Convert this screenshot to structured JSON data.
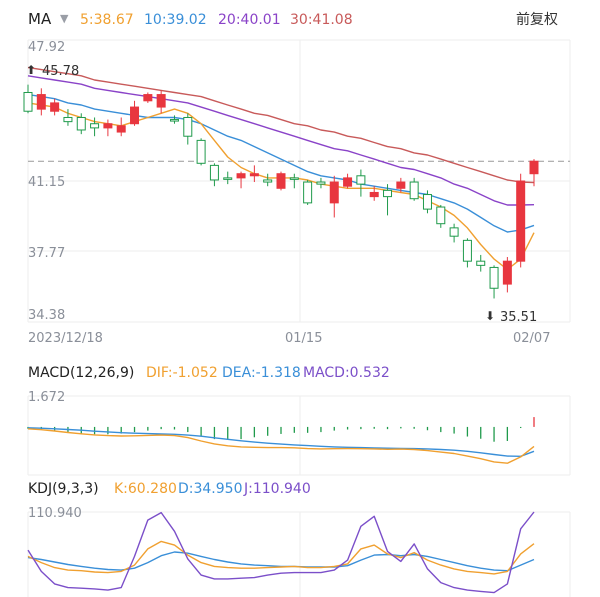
{
  "colors": {
    "up": "#e8363f",
    "down": "#1f9a4b",
    "ma5": "#f0a030",
    "ma10": "#3a8fd8",
    "ma20": "#8a43c8",
    "ma30": "#c85a5a",
    "dif": "#f0a030",
    "dea": "#3a8fd8",
    "macd_bar": "#8a43c8",
    "k": "#f0a030",
    "d": "#3a8fd8",
    "j": "#7b4fc9",
    "grid": "#eeeeee",
    "text": "#8a8f99",
    "last_price_line": "#999999"
  },
  "header": {
    "indicator": "MA",
    "dropdown_icon": "triangle-down-icon",
    "ma5": "5:38.67",
    "ma10": "10:39.02",
    "ma20": "20:40.01",
    "ma30": "30:41.08",
    "adjust": "前复权"
  },
  "macd_header": {
    "name": "MACD(12,26,9)",
    "dif": "DIF:-1.052",
    "dea": "DEA:-1.318",
    "macd": "MACD:0.532"
  },
  "kdj_header": {
    "name": "KDJ(9,3,3)",
    "k": "K:60.280",
    "d": "D:34.950",
    "j": "J:110.940"
  },
  "chart_data": [
    {
      "type": "candlestick",
      "price_ticks": [
        "47.92",
        "41.15",
        "37.77",
        "34.38"
      ],
      "x_ticks": [
        "2023/12/18",
        "01/15",
        "02/07"
      ],
      "ylim": [
        34.38,
        47.92
      ],
      "max_label": "45.78",
      "min_label": "35.51",
      "last_close": 42.1,
      "candles": [
        {
          "o": 45.4,
          "c": 44.5,
          "h": 45.78,
          "l": 44.4
        },
        {
          "o": 44.6,
          "c": 45.3,
          "h": 45.6,
          "l": 44.3
        },
        {
          "o": 44.5,
          "c": 44.9,
          "h": 45.1,
          "l": 44.3
        },
        {
          "o": 44.2,
          "c": 44.0,
          "h": 44.6,
          "l": 43.8
        },
        {
          "o": 44.2,
          "c": 43.6,
          "h": 44.4,
          "l": 43.4
        },
        {
          "o": 43.9,
          "c": 43.7,
          "h": 44.2,
          "l": 43.3
        },
        {
          "o": 43.7,
          "c": 43.9,
          "h": 44.1,
          "l": 43.3
        },
        {
          "o": 43.5,
          "c": 43.8,
          "h": 44.2,
          "l": 43.3
        },
        {
          "o": 43.9,
          "c": 44.7,
          "h": 45.0,
          "l": 43.8
        },
        {
          "o": 45.0,
          "c": 45.3,
          "h": 45.4,
          "l": 44.9
        },
        {
          "o": 44.7,
          "c": 45.3,
          "h": 45.5,
          "l": 44.4
        },
        {
          "o": 44.1,
          "c": 44.1,
          "h": 44.3,
          "l": 43.9
        },
        {
          "o": 44.2,
          "c": 43.3,
          "h": 44.4,
          "l": 42.9
        },
        {
          "o": 43.1,
          "c": 42.0,
          "h": 43.2,
          "l": 41.9
        },
        {
          "o": 41.9,
          "c": 41.2,
          "h": 42.0,
          "l": 40.9
        },
        {
          "o": 41.3,
          "c": 41.3,
          "h": 41.6,
          "l": 41.0
        },
        {
          "o": 41.3,
          "c": 41.5,
          "h": 41.6,
          "l": 40.8
        },
        {
          "o": 41.4,
          "c": 41.5,
          "h": 41.9,
          "l": 41.1
        },
        {
          "o": 41.2,
          "c": 41.1,
          "h": 41.5,
          "l": 40.9
        },
        {
          "o": 40.8,
          "c": 41.5,
          "h": 41.6,
          "l": 40.7
        },
        {
          "o": 41.3,
          "c": 41.3,
          "h": 41.5,
          "l": 40.8
        },
        {
          "o": 41.1,
          "c": 40.1,
          "h": 41.2,
          "l": 40.0
        },
        {
          "o": 41.1,
          "c": 41.0,
          "h": 41.3,
          "l": 40.8
        },
        {
          "o": 40.1,
          "c": 41.1,
          "h": 41.4,
          "l": 39.4
        },
        {
          "o": 40.9,
          "c": 41.3,
          "h": 41.5,
          "l": 40.8
        },
        {
          "o": 41.4,
          "c": 41.0,
          "h": 41.7,
          "l": 40.4
        },
        {
          "o": 40.4,
          "c": 40.6,
          "h": 40.9,
          "l": 40.2
        },
        {
          "o": 40.7,
          "c": 40.4,
          "h": 41.0,
          "l": 39.5
        },
        {
          "o": 40.8,
          "c": 41.1,
          "h": 41.3,
          "l": 40.6
        },
        {
          "o": 41.1,
          "c": 40.3,
          "h": 41.3,
          "l": 40.2
        },
        {
          "o": 40.5,
          "c": 39.8,
          "h": 40.7,
          "l": 39.6
        },
        {
          "o": 39.9,
          "c": 39.1,
          "h": 40.0,
          "l": 38.9
        },
        {
          "o": 38.9,
          "c": 38.5,
          "h": 39.1,
          "l": 38.2
        },
        {
          "o": 38.3,
          "c": 37.3,
          "h": 38.4,
          "l": 37.0
        },
        {
          "o": 37.3,
          "c": 37.1,
          "h": 37.6,
          "l": 36.8
        },
        {
          "o": 37.0,
          "c": 36.0,
          "h": 37.1,
          "l": 35.51
        },
        {
          "o": 36.2,
          "c": 37.3,
          "h": 37.5,
          "l": 35.8
        },
        {
          "o": 37.3,
          "c": 41.15,
          "h": 41.5,
          "l": 37.0
        },
        {
          "o": 41.5,
          "c": 42.1,
          "h": 42.2,
          "l": 40.9
        }
      ],
      "ma5": [
        44.9,
        44.8,
        44.7,
        44.4,
        44.2,
        44.0,
        43.9,
        43.8,
        44.0,
        44.2,
        44.4,
        44.6,
        44.4,
        43.9,
        43.1,
        42.3,
        41.8,
        41.5,
        41.3,
        41.3,
        41.3,
        41.2,
        41.0,
        40.9,
        40.8,
        40.8,
        40.8,
        40.7,
        40.6,
        40.5,
        40.2,
        39.9,
        39.5,
        38.9,
        38.1,
        37.4,
        36.9,
        37.4,
        38.67
      ],
      "ma10": [
        45.3,
        45.2,
        45.1,
        44.9,
        44.8,
        44.6,
        44.5,
        44.4,
        44.3,
        44.2,
        44.2,
        44.2,
        44.1,
        43.9,
        43.6,
        43.3,
        43.1,
        42.8,
        42.5,
        42.2,
        41.9,
        41.6,
        41.4,
        41.3,
        41.2,
        41.0,
        40.9,
        40.8,
        40.7,
        40.6,
        40.5,
        40.3,
        40.1,
        39.8,
        39.4,
        39.0,
        38.7,
        38.8,
        39.02
      ],
      "ma20": [
        46.2,
        46.1,
        46.0,
        45.9,
        45.8,
        45.6,
        45.5,
        45.4,
        45.3,
        45.2,
        45.1,
        45.0,
        44.9,
        44.7,
        44.5,
        44.3,
        44.1,
        43.9,
        43.7,
        43.5,
        43.3,
        43.1,
        42.9,
        42.7,
        42.6,
        42.4,
        42.2,
        42.0,
        41.8,
        41.7,
        41.5,
        41.3,
        41.0,
        40.8,
        40.5,
        40.2,
        40.0,
        40.0,
        40.01
      ],
      "ma30": [
        46.6,
        46.5,
        46.4,
        46.3,
        46.2,
        46.0,
        45.9,
        45.8,
        45.7,
        45.6,
        45.5,
        45.4,
        45.3,
        45.2,
        45.0,
        44.8,
        44.6,
        44.4,
        44.3,
        44.1,
        43.9,
        43.8,
        43.6,
        43.5,
        43.3,
        43.2,
        43.0,
        42.8,
        42.7,
        42.5,
        42.4,
        42.2,
        42.0,
        41.8,
        41.6,
        41.4,
        41.2,
        41.1,
        41.08
      ]
    },
    {
      "type": "macd",
      "ylabel_tick": "1.672",
      "ylim": [
        -2.6,
        1.672
      ],
      "dif": [
        -0.1,
        -0.15,
        -0.22,
        -0.3,
        -0.37,
        -0.43,
        -0.47,
        -0.49,
        -0.48,
        -0.46,
        -0.44,
        -0.47,
        -0.58,
        -0.76,
        -0.92,
        -1.02,
        -1.08,
        -1.1,
        -1.12,
        -1.12,
        -1.13,
        -1.17,
        -1.19,
        -1.18,
        -1.17,
        -1.18,
        -1.19,
        -1.21,
        -1.2,
        -1.22,
        -1.28,
        -1.36,
        -1.44,
        -1.58,
        -1.72,
        -1.89,
        -1.96,
        -1.62,
        -1.052
      ],
      "dea": [
        -0.05,
        -0.07,
        -0.1,
        -0.14,
        -0.18,
        -0.23,
        -0.27,
        -0.31,
        -0.34,
        -0.36,
        -0.38,
        -0.4,
        -0.44,
        -0.5,
        -0.59,
        -0.67,
        -0.75,
        -0.82,
        -0.88,
        -0.93,
        -0.97,
        -1.01,
        -1.05,
        -1.08,
        -1.1,
        -1.12,
        -1.14,
        -1.15,
        -1.16,
        -1.17,
        -1.19,
        -1.22,
        -1.26,
        -1.32,
        -1.4,
        -1.49,
        -1.58,
        -1.59,
        -1.318
      ],
      "macd": [
        -0.1,
        -0.16,
        -0.24,
        -0.32,
        -0.38,
        -0.4,
        -0.4,
        -0.36,
        -0.28,
        -0.2,
        -0.12,
        -0.14,
        -0.28,
        -0.52,
        -0.66,
        -0.7,
        -0.66,
        -0.56,
        -0.48,
        -0.38,
        -0.32,
        -0.32,
        -0.28,
        -0.2,
        -0.14,
        -0.12,
        -0.1,
        -0.12,
        -0.08,
        -0.1,
        -0.18,
        -0.28,
        -0.36,
        -0.52,
        -0.64,
        -0.8,
        -0.76,
        -0.06,
        0.532
      ]
    },
    {
      "type": "kdj",
      "ylabel_tick": "110.940",
      "ylim": [
        -25,
        110.94
      ],
      "k": [
        40,
        30,
        22,
        18,
        17,
        15,
        14,
        16,
        26,
        52,
        64,
        58,
        42,
        30,
        24,
        22,
        21,
        21,
        22,
        23,
        24,
        22,
        22,
        24,
        28,
        52,
        58,
        44,
        38,
        46,
        34,
        26,
        20,
        16,
        14,
        12,
        16,
        44,
        60.28
      ],
      "d": [
        38,
        35,
        31,
        27,
        24,
        21,
        19,
        18,
        21,
        30,
        41,
        47,
        45,
        40,
        35,
        31,
        28,
        26,
        25,
        24,
        24,
        23,
        23,
        23,
        25,
        34,
        42,
        43,
        41,
        43,
        40,
        35,
        30,
        25,
        21,
        18,
        17,
        26,
        34.95
      ],
      "j": [
        50,
        16,
        -4,
        -10,
        -11,
        -12,
        -14,
        -10,
        40,
        98,
        110,
        80,
        36,
        10,
        4,
        4,
        5,
        6,
        10,
        13,
        14,
        14,
        14,
        18,
        34,
        88,
        104,
        48,
        32,
        60,
        20,
        -2,
        -10,
        -14,
        -16,
        -18,
        -4,
        84,
        110.94
      ]
    }
  ]
}
